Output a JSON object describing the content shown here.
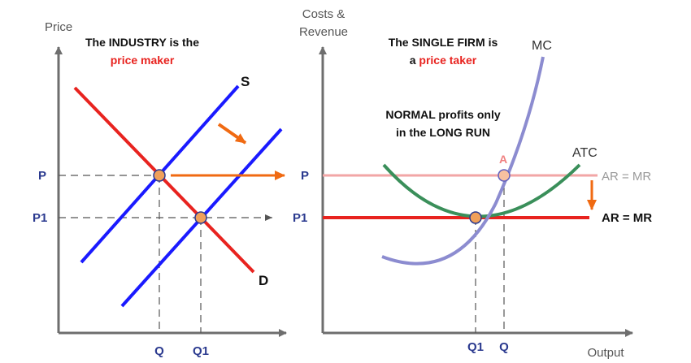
{
  "left_panel": {
    "y_axis_title": "Price",
    "heading_line1": "The INDUSTRY is the",
    "heading_line2": "price maker",
    "supply_label": "S",
    "demand_label": "D",
    "y_ticks": {
      "p": "P",
      "p1": "P1"
    },
    "x_ticks": {
      "q": "Q",
      "q1": "Q1"
    }
  },
  "right_panel": {
    "y_axis_title_line1": "Costs &",
    "y_axis_title_line2": "Revenue",
    "heading_line1": "The SINGLE FIRM is",
    "heading_prefix": "a ",
    "heading_highlight": "price taker",
    "note_line1": "NORMAL profits only",
    "note_line2": "in the LONG RUN",
    "mc_label": "MC",
    "atc_label": "ATC",
    "point_label": "A",
    "ar_old_label": "AR = MR",
    "ar_new_label": "AR = MR",
    "y_ticks": {
      "p": "P",
      "p1": "P1"
    },
    "x_ticks": {
      "q1": "Q1",
      "q": "Q"
    },
    "x_axis_title": "Output"
  },
  "colors": {
    "supply": "#1a1aff",
    "demand": "#e8231f",
    "mc": "#8c8cd0",
    "atc": "#3a8f5a",
    "arrow": "#f06a12",
    "ar_old": "#f2a6a6",
    "ar_new": "#e8231f",
    "point_fill": "#f0a05a",
    "point_stroke": "#2b3a8f",
    "axis": "#6e6e6e"
  }
}
